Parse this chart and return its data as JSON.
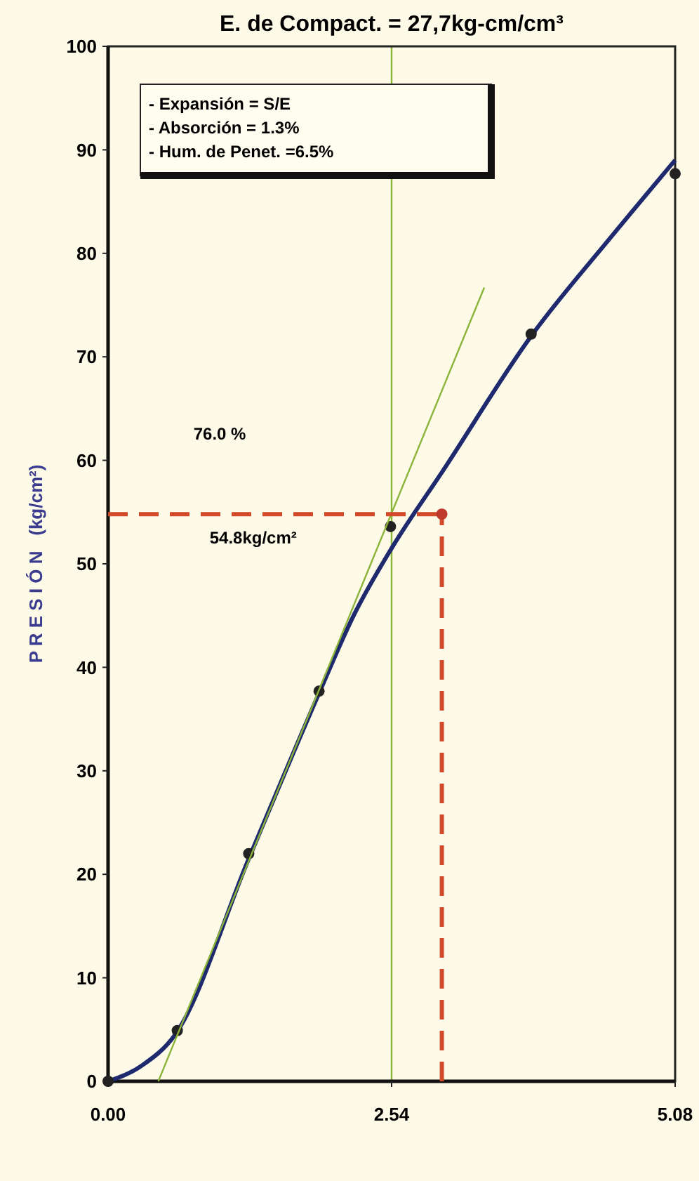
{
  "chart_data": {
    "type": "line",
    "title": "E. de Compact. = 27,7kg-cm/cm³",
    "ylabel": "P R E S I Ó N   (kg/cm²)",
    "xlim": [
      0,
      5.08
    ],
    "xticks": [
      {
        "value": 0,
        "label": "0.00"
      },
      2.54,
      5.08
    ],
    "ylim": [
      0,
      100
    ],
    "yticks": [
      0,
      10,
      20,
      30,
      40,
      50,
      60,
      70,
      80,
      90,
      100
    ],
    "grid": false,
    "series": [
      {
        "color": "#1f2a6e",
        "marker": "none",
        "line_style": "solid",
        "x": [
          0,
          0.3,
          0.6,
          1.26,
          1.89,
          2.2,
          2.54,
          3.0,
          3.79,
          4.5,
          5.08
        ],
        "values": [
          0,
          1.5,
          4.5,
          21.5,
          37.5,
          45,
          51.5,
          59,
          72,
          81.5,
          89
        ]
      },
      {
        "type": "scatter",
        "color": "#222222",
        "marker": "circle",
        "x": [
          0,
          0.62,
          1.26,
          1.89,
          2.53,
          3.79,
          5.08
        ],
        "values": [
          0,
          4.9,
          22,
          37.7,
          53.6,
          72.2,
          87.7
        ]
      },
      {
        "color": "#8cb33a",
        "marker": "none",
        "line_style": "solid",
        "x": [
          0.45,
          3.37
        ],
        "values": [
          0,
          76.7
        ]
      },
      {
        "color": "#d24a2a",
        "marker": "none",
        "line_style": "dashed",
        "x": [
          0,
          2.99
        ],
        "values": [
          54.8,
          54.8
        ]
      },
      {
        "color": "#d24a2a",
        "marker": "none",
        "line_style": "dashed",
        "x": [
          2.99,
          2.99
        ],
        "values": [
          0,
          54.8
        ]
      },
      {
        "type": "scatter",
        "color": "#c0392b",
        "marker": "circle",
        "x": [
          2.99
        ],
        "values": [
          54.8
        ]
      }
    ],
    "ref_lines": [
      {
        "axis": "x",
        "value": 2.54,
        "color": "#8cb33a"
      }
    ],
    "annotations": [
      "- Expansión = S/E",
      "- Absorción = 1.3%",
      "- Hum. de Penet. =6.5%",
      "76.0 %",
      "54.8kg/cm²"
    ]
  }
}
